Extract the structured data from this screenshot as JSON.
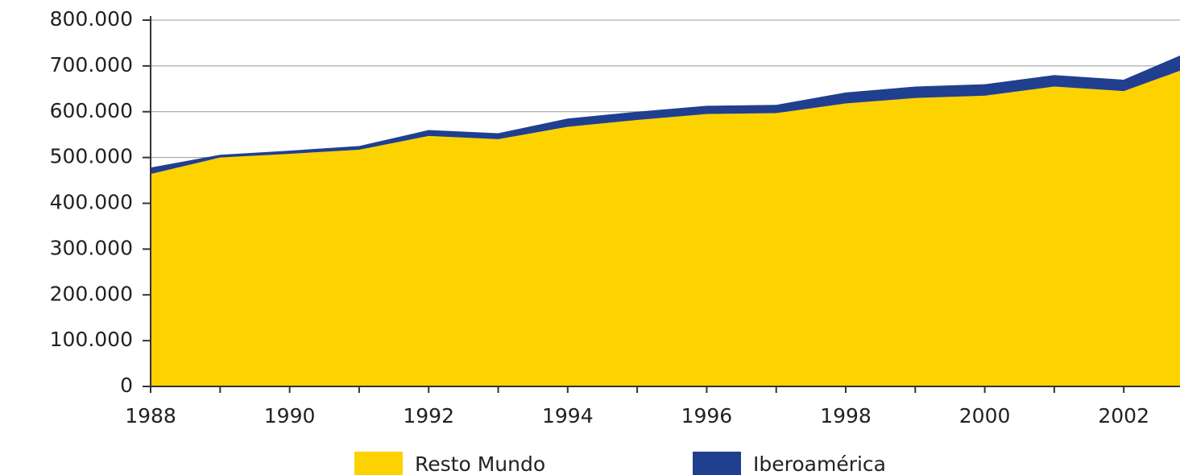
{
  "chart_data": {
    "type": "stacked_area",
    "categories": [
      "1988",
      null,
      "1990",
      null,
      "1992",
      null,
      "1994",
      null,
      "1996",
      null,
      "1998",
      null,
      "2000",
      null,
      "2002",
      null
    ],
    "series": [
      {
        "name": "Resto Mundo",
        "color": "#fcd200",
        "values": [
          464000,
          500000,
          508000,
          517000,
          547000,
          540000,
          567000,
          582000,
          595000,
          597000,
          618000,
          630000,
          635000,
          655000,
          645000,
          700000
        ]
      },
      {
        "name": "Iberoamérica",
        "color": "#213f8f",
        "values": [
          14000,
          6000,
          7000,
          8000,
          13000,
          13000,
          18000,
          18000,
          18000,
          18000,
          24000,
          25000,
          25000,
          25000,
          25000,
          35000
        ]
      }
    ],
    "ylim": [
      0,
      800000
    ],
    "yticks": [
      0,
      {
        "value": 100000,
        "label": "100.000"
      },
      {
        "value": 200000,
        "label": "200.000"
      },
      {
        "value": 300000,
        "label": "300.000"
      },
      {
        "value": 400000,
        "label": "400.000"
      },
      {
        "value": 500000,
        "label": "500.000"
      },
      {
        "value": 600000,
        "label": "600.000"
      },
      {
        "value": 700000,
        "label": "700.000"
      },
      {
        "value": 800000,
        "label": "800.000"
      }
    ],
    "grid": true,
    "legend": "bottom"
  }
}
